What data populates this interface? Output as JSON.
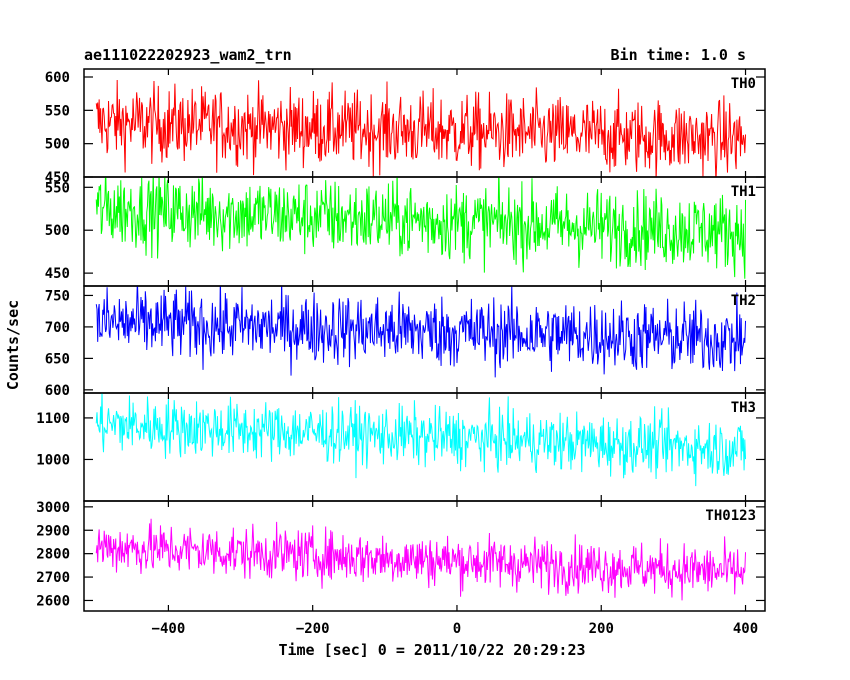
{
  "chart_data": {
    "type": "line",
    "header_left": "ae111022202923_wam2_trn",
    "header_right": "Bin time: 1.0 s",
    "xlabel": "Time [sec] 0 = 2011/10/22 20:29:23",
    "ylabel": "Counts/sec",
    "xlim": [
      -517,
      427
    ],
    "x_ticks": [
      -400,
      -200,
      0,
      200,
      400
    ],
    "x_tick_labels": [
      "−400",
      "−200",
      "0",
      "200",
      "400"
    ],
    "x_range_data": [
      -500,
      400
    ],
    "panels": [
      {
        "name": "TH0",
        "color": "#ff0000",
        "ylim": [
          450,
          612
        ],
        "ticks": [
          450,
          500,
          550,
          600
        ],
        "tick_labels": [
          "450",
          "500",
          "550",
          "600"
        ],
        "mean_start": 532,
        "mean_end": 507,
        "noise": 28
      },
      {
        "name": "TH1",
        "color": "#00ff00",
        "ylim": [
          435,
          562
        ],
        "ticks": [
          450,
          500,
          550
        ],
        "tick_labels": [
          "450",
          "500",
          "550"
        ],
        "mean_start": 525,
        "mean_end": 498,
        "noise": 22
      },
      {
        "name": "TH2",
        "color": "#0000ff",
        "ylim": [
          595,
          765
        ],
        "ticks": [
          600,
          650,
          700,
          750
        ],
        "tick_labels": [
          "600",
          "650",
          "700",
          "750"
        ],
        "mean_start": 707,
        "mean_end": 680,
        "noise": 28
      },
      {
        "name": "TH3",
        "color": "#00ffff",
        "ylim": [
          900,
          1160
        ],
        "ticks": [
          1000,
          1100
        ],
        "tick_labels": [
          "1000",
          "1100"
        ],
        "mean_start": 1085,
        "mean_end": 1025,
        "noise": 35
      },
      {
        "name": "TH0123",
        "color": "#ff00ff",
        "ylim": [
          2555,
          3025
        ],
        "ticks": [
          2600,
          2700,
          2800,
          2900,
          3000
        ],
        "tick_labels": [
          "2600",
          "2700",
          "2800",
          "2900",
          "3000"
        ],
        "mean_start": 2830,
        "mean_end": 2720,
        "noise": 55
      }
    ]
  }
}
